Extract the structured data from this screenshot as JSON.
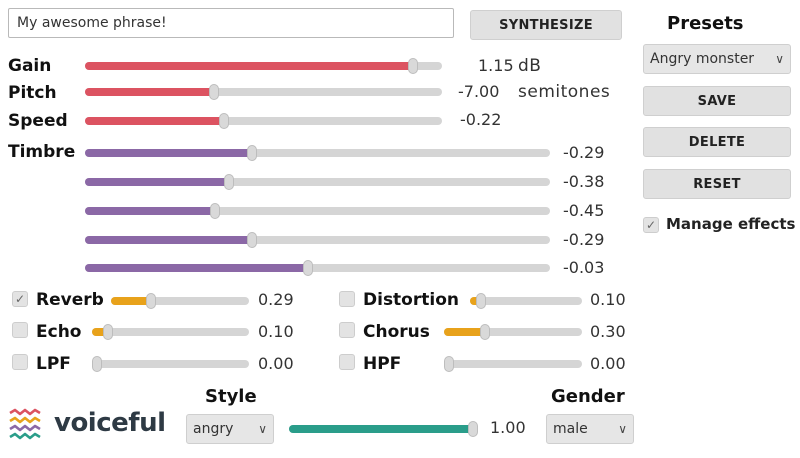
{
  "phrase": {
    "value": "My awesome phrase!"
  },
  "synthesize_label": "SYNTHESIZE",
  "presets": {
    "title": "Presets",
    "selected": "Angry monster",
    "save": "SAVE",
    "delete": "DELETE",
    "reset": "RESET",
    "manage_effects": "Manage effects",
    "manage_checked": true
  },
  "colors": {
    "red": "#dc5361",
    "purple": "#8b68a6",
    "orange": "#e8a21b",
    "teal": "#2a9d8a"
  },
  "gain": {
    "label": "Gain",
    "value": "1.15",
    "unit": "dB",
    "level": 0.92
  },
  "pitch": {
    "label": "Pitch",
    "value": "-7.00",
    "unit": "semitones",
    "level": 0.36
  },
  "speed": {
    "label": "Speed",
    "value": "-0.22",
    "level": 0.39
  },
  "timbre": {
    "label": "Timbre",
    "sliders": [
      {
        "value": "-0.29",
        "level": 0.36
      },
      {
        "value": "-0.38",
        "level": 0.31
      },
      {
        "value": "-0.45",
        "level": 0.28
      },
      {
        "value": "-0.29",
        "level": 0.36
      },
      {
        "value": "-0.03",
        "level": 0.48
      }
    ]
  },
  "effects": [
    {
      "name": "Reverb",
      "value": "0.29",
      "level": 0.29,
      "checked": true
    },
    {
      "name": "Echo",
      "value": "0.10",
      "level": 0.1,
      "checked": false
    },
    {
      "name": "LPF",
      "value": "0.00",
      "level": 0.0,
      "checked": false
    },
    {
      "name": "Distortion",
      "value": "0.10",
      "level": 0.1,
      "checked": false
    },
    {
      "name": "Chorus",
      "value": "0.30",
      "level": 0.3,
      "checked": false
    },
    {
      "name": "HPF",
      "value": "0.00",
      "level": 0.0,
      "checked": false
    }
  ],
  "style": {
    "label": "Style",
    "selected": "angry",
    "value": "1.00",
    "level": 1.0
  },
  "gender": {
    "label": "Gender",
    "selected": "male"
  },
  "brand": {
    "name": "voiceful"
  }
}
